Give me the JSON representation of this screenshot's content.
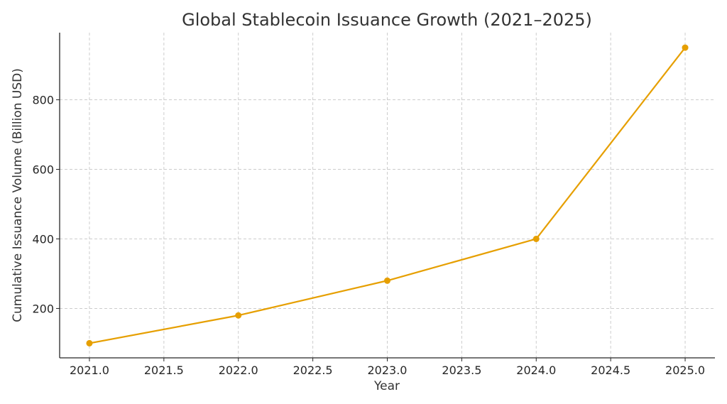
{
  "chart_data": {
    "type": "line",
    "title": "Global Stablecoin Issuance Growth (2021–2025)",
    "xlabel": "Year",
    "ylabel": "Cumulative Issuance Volume (Billion USD)",
    "x": [
      2021,
      2022,
      2023,
      2024,
      2025
    ],
    "series": [
      {
        "values": [
          100,
          180,
          280,
          400,
          950
        ]
      }
    ],
    "xlim": [
      2020.8,
      2025.2
    ],
    "ylim": [
      58,
      993
    ],
    "xticks": [
      2021.0,
      2021.5,
      2022.0,
      2022.5,
      2023.0,
      2023.5,
      2024.0,
      2024.5,
      2025.0
    ],
    "xtick_labels": [
      "2021.0",
      "2021.5",
      "2022.0",
      "2022.5",
      "2023.0",
      "2023.5",
      "2024.0",
      "2024.5",
      "2025.0"
    ],
    "yticks": [
      200,
      400,
      600,
      800
    ],
    "ytick_labels": [
      "200",
      "400",
      "600",
      "800"
    ],
    "grid": true,
    "legend": "none",
    "colors": {
      "line": "#E69F00",
      "grid": "#cccccc",
      "axis": "#262626",
      "text": "#333333"
    }
  }
}
